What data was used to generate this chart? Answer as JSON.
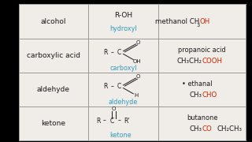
{
  "table_bg": "#f0ede8",
  "border_color": "#999999",
  "black": "#1a1a1a",
  "red": "#cc2200",
  "blue": "#3399bb",
  "cols": [
    0.0,
    0.305,
    0.615,
    1.0
  ],
  "rows": [
    0.0,
    0.25,
    0.5,
    0.75,
    1.0
  ],
  "fs_name": 6.5,
  "fs_formula": 6.2,
  "fs_group": 5.8,
  "fs_struct": 5.5
}
